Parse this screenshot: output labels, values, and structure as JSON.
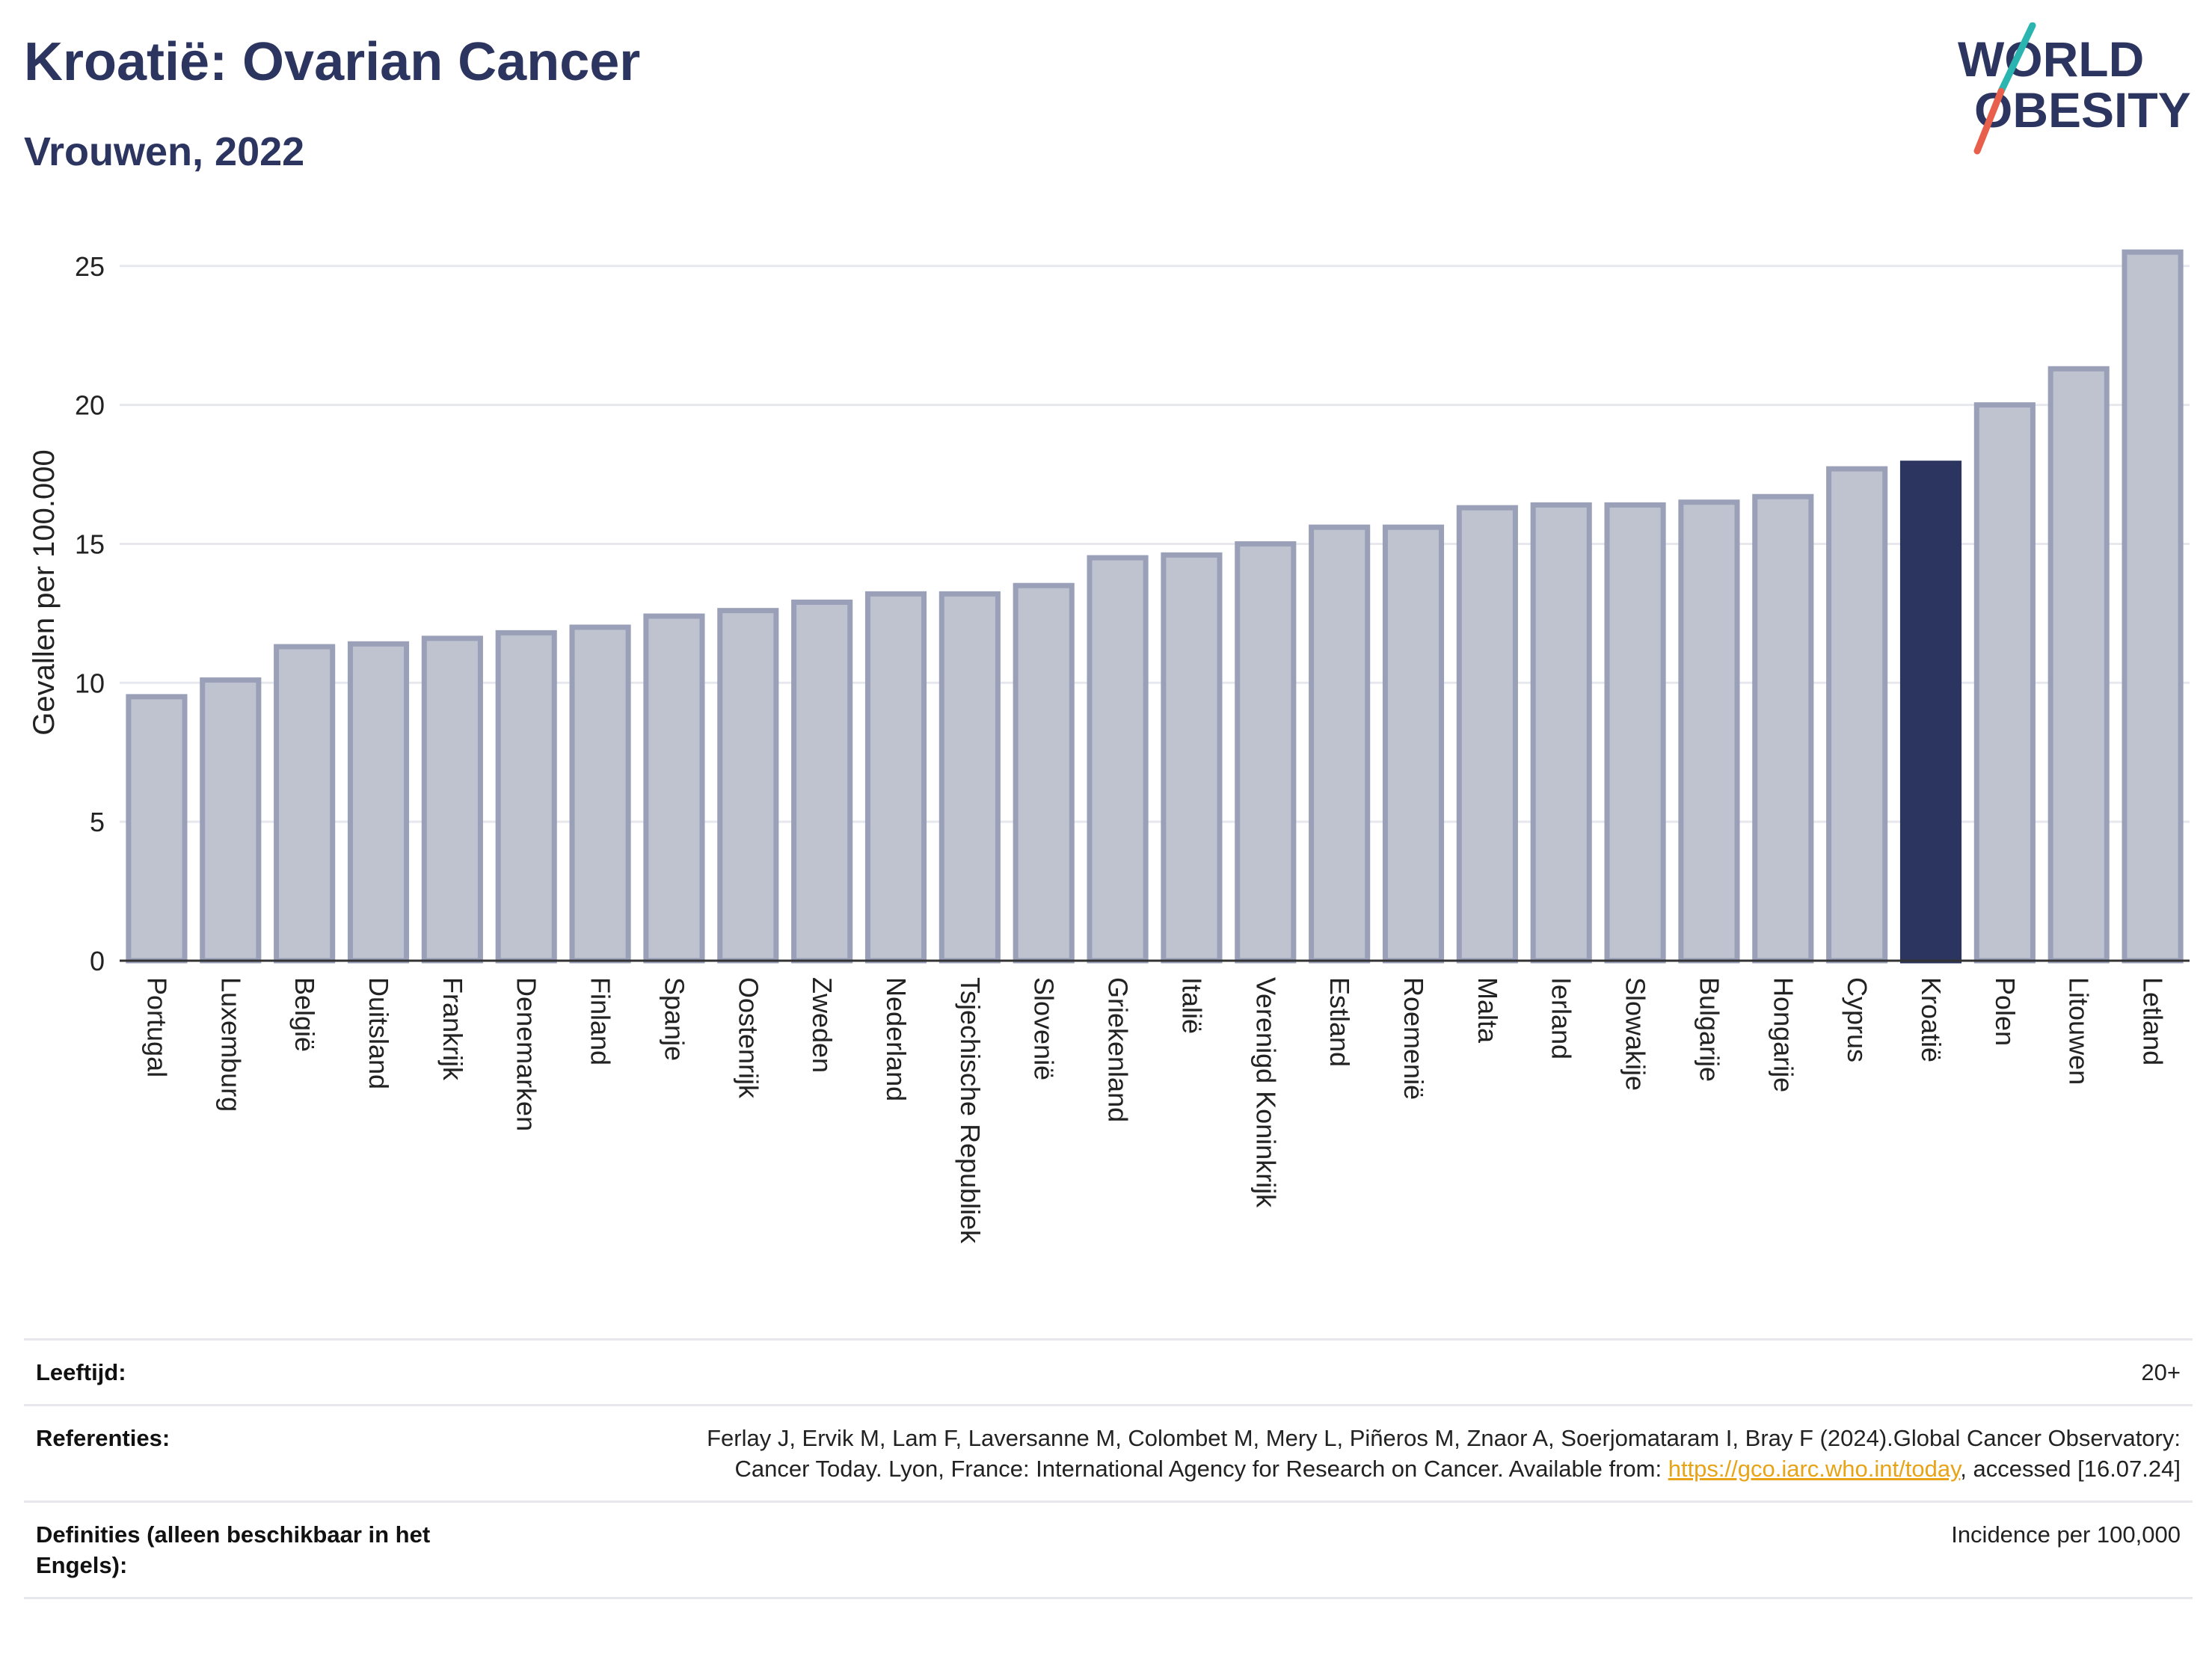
{
  "header": {
    "title": "Kroatië: Ovarian Cancer",
    "subtitle": "Vrouwen, 2022",
    "logo_line1": "WORLD",
    "logo_line2": "OBESITY"
  },
  "colors": {
    "bar": "#bfc3d0",
    "bar_stroke": "#9aa0b8",
    "highlight": "#2c3560",
    "accent_teal": "#2bb5b0",
    "accent_coral": "#e8604c",
    "grid": "#e6e8ee"
  },
  "chart_data": {
    "type": "bar",
    "ylabel": "Gevallen per 100.000",
    "xlabel": "",
    "ylim": [
      0,
      26.5
    ],
    "yticks": [
      0,
      5,
      10,
      15,
      20,
      25
    ],
    "grid": true,
    "highlight": "Kroatië",
    "categories": [
      "Portugal",
      "Luxemburg",
      "België",
      "Duitsland",
      "Frankrijk",
      "Denemarken",
      "Finland",
      "Spanje",
      "Oostenrijk",
      "Zweden",
      "Nederland",
      "Tsjechische Republiek",
      "Slovenië",
      "Griekenland",
      "Italië",
      "Verenigd Koninkrijk",
      "Estland",
      "Roemenië",
      "Malta",
      "Ierland",
      "Slowakije",
      "Bulgarije",
      "Hongarije",
      "Cyprus",
      "Kroatië",
      "Polen",
      "Litouwen",
      "Letland"
    ],
    "values": [
      9.5,
      10.1,
      11.3,
      11.4,
      11.6,
      11.8,
      12.0,
      12.4,
      12.6,
      12.9,
      13.2,
      13.2,
      13.5,
      14.5,
      14.6,
      15.0,
      15.6,
      15.6,
      16.3,
      16.4,
      16.4,
      16.5,
      16.7,
      17.7,
      17.9,
      20.0,
      21.3,
      25.5
    ]
  },
  "footer": {
    "age_label": "Leeftijd:",
    "age_value": "20+",
    "ref_label": "Referenties:",
    "ref_text": "Ferlay J, Ervik M, Lam F, Laversanne M, Colombet M, Mery L, Piñeros M, Znaor A, Soerjomataram I, Bray F (2024).Global Cancer Observatory: Cancer Today. Lyon, France: International Agency for Research on Cancer. Available from: ",
    "ref_link": "https://gco.iarc.who.int/today",
    "ref_suffix": ", accessed [16.07.24]",
    "def_label": "Definities (alleen beschikbaar in het Engels):",
    "def_value": "Incidence per 100,000"
  }
}
